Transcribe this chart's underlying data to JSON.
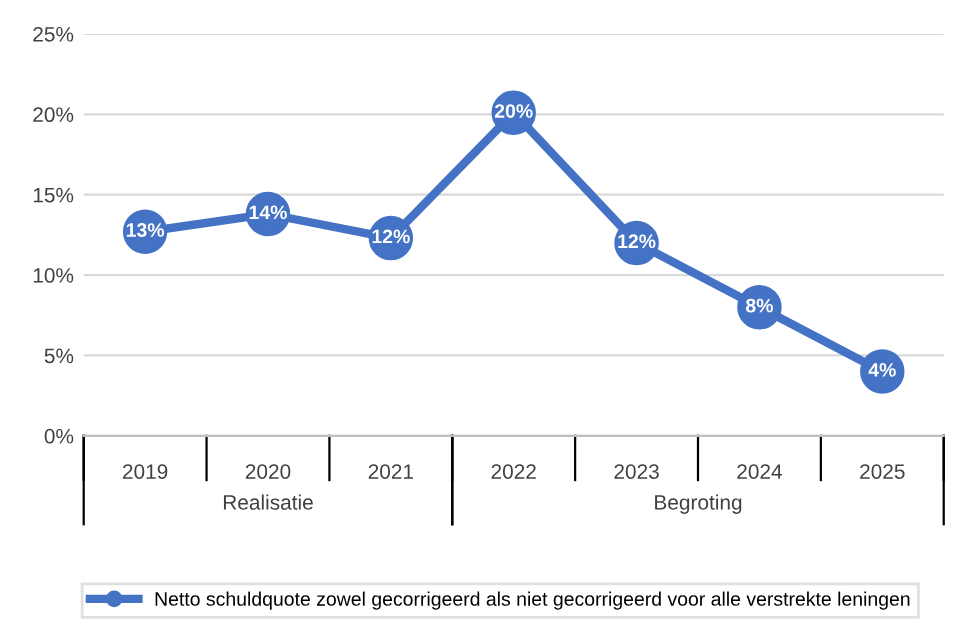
{
  "chart_data": {
    "type": "line",
    "categories": [
      "2019",
      "2020",
      "2021",
      "2022",
      "2023",
      "2024",
      "2025"
    ],
    "series": [
      {
        "name": "Netto schuldquote zowel gecorrigeerd als niet gecorrigeerd voor alle verstrekte leningen",
        "color": "#4472c4",
        "values": [
          12.7,
          13.8,
          12.3,
          20.1,
          12.0,
          8.0,
          4.0
        ],
        "value_labels": [
          "13%",
          "14%",
          "12%",
          "20%",
          "12%",
          "8%",
          "4%"
        ]
      }
    ],
    "annotations": [
      "Realisatie",
      "Begroting"
    ],
    "ylim": [
      0,
      25
    ],
    "yticks": [
      {
        "value": 0,
        "label": "0%"
      },
      {
        "value": 5,
        "label": "5%"
      },
      {
        "value": 10,
        "label": "10%"
      },
      {
        "value": 15,
        "label": "15%"
      },
      {
        "value": 20,
        "label": "20%"
      },
      {
        "value": 25,
        "label": "25%"
      }
    ],
    "grid": "y",
    "legend": "bottom",
    "marker": "circle",
    "line_style": "solid"
  }
}
